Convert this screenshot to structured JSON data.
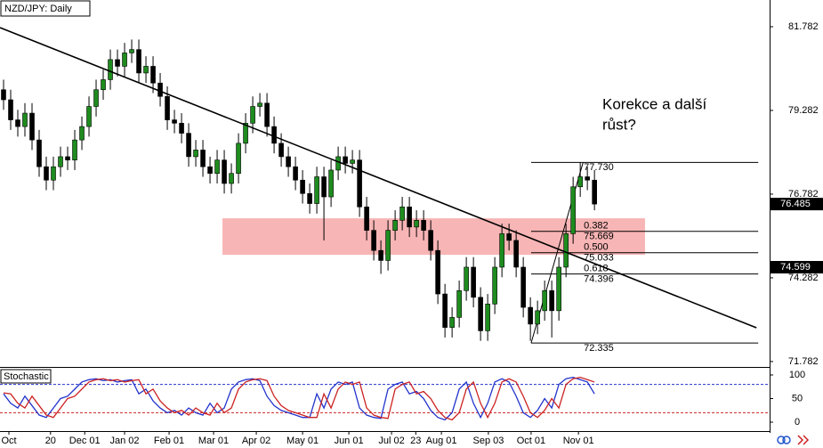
{
  "chart_data": [
    {
      "type": "candlestick",
      "title": "NZD/JPY: Daily",
      "annotation": [
        "Korekce a další",
        "růst?"
      ],
      "up_color": "#1e8c1e",
      "down_color": "#000000",
      "candles": [
        [
          79.9,
          80.2,
          79.3,
          79.6
        ],
        [
          79.6,
          79.9,
          78.7,
          79.0
        ],
        [
          79.0,
          79.3,
          78.5,
          78.8
        ],
        [
          78.8,
          79.5,
          78.5,
          79.2
        ],
        [
          79.2,
          79.5,
          78.1,
          78.4
        ],
        [
          78.4,
          78.7,
          77.3,
          77.6
        ],
        [
          77.6,
          77.9,
          76.9,
          77.2
        ],
        [
          77.2,
          77.9,
          76.9,
          77.6
        ],
        [
          77.6,
          78.2,
          77.3,
          77.9
        ],
        [
          77.9,
          78.2,
          77.5,
          77.8
        ],
        [
          77.8,
          78.7,
          77.5,
          78.4
        ],
        [
          78.4,
          79.1,
          78.1,
          78.8
        ],
        [
          78.8,
          79.7,
          78.5,
          79.4
        ],
        [
          79.4,
          80.2,
          79.1,
          79.9
        ],
        [
          79.9,
          80.5,
          79.6,
          80.2
        ],
        [
          80.2,
          81.1,
          79.9,
          80.8
        ],
        [
          80.8,
          81.1,
          80.3,
          80.6
        ],
        [
          80.6,
          81.3,
          80.3,
          81.0
        ],
        [
          81.0,
          81.4,
          80.7,
          81.1
        ],
        [
          81.1,
          81.4,
          80.1,
          80.4
        ],
        [
          80.4,
          80.9,
          80.1,
          80.6
        ],
        [
          80.6,
          80.9,
          79.8,
          80.1
        ],
        [
          80.1,
          80.4,
          79.4,
          79.7
        ],
        [
          79.7,
          80.0,
          78.7,
          79.0
        ],
        [
          79.0,
          79.3,
          78.6,
          78.9
        ],
        [
          78.9,
          79.2,
          78.3,
          78.6
        ],
        [
          78.6,
          78.9,
          77.6,
          77.9
        ],
        [
          77.9,
          78.4,
          77.6,
          78.1
        ],
        [
          78.1,
          78.4,
          77.3,
          77.6
        ],
        [
          77.6,
          77.9,
          77.1,
          77.4
        ],
        [
          77.4,
          78.1,
          77.1,
          77.8
        ],
        [
          77.8,
          78.1,
          76.8,
          77.1
        ],
        [
          77.1,
          77.7,
          76.8,
          77.4
        ],
        [
          77.4,
          78.6,
          77.1,
          78.3
        ],
        [
          78.3,
          79.2,
          78.0,
          78.9
        ],
        [
          78.9,
          79.7,
          78.6,
          79.4
        ],
        [
          79.4,
          79.8,
          79.1,
          79.5
        ],
        [
          79.5,
          79.8,
          78.5,
          78.8
        ],
        [
          78.8,
          79.1,
          78.0,
          78.3
        ],
        [
          78.3,
          78.6,
          77.6,
          77.9
        ],
        [
          77.9,
          78.2,
          77.3,
          77.6
        ],
        [
          77.6,
          77.9,
          76.9,
          77.2
        ],
        [
          77.2,
          77.5,
          76.5,
          76.8
        ],
        [
          76.8,
          77.1,
          76.2,
          76.5
        ],
        [
          76.5,
          77.6,
          76.2,
          77.3
        ],
        [
          77.3,
          77.6,
          75.4,
          76.7
        ],
        [
          76.7,
          77.8,
          76.4,
          77.5
        ],
        [
          77.5,
          78.2,
          77.2,
          77.9
        ],
        [
          77.9,
          78.2,
          77.4,
          77.7
        ],
        [
          77.7,
          78.1,
          77.4,
          77.8
        ],
        [
          77.8,
          78.1,
          76.1,
          76.4
        ],
        [
          76.4,
          76.7,
          75.4,
          75.7
        ],
        [
          75.7,
          76.0,
          74.8,
          75.1
        ],
        [
          75.1,
          75.4,
          74.4,
          74.8
        ],
        [
          74.8,
          76.0,
          74.5,
          75.7
        ],
        [
          75.7,
          76.3,
          75.4,
          76.0
        ],
        [
          76.0,
          76.7,
          75.7,
          76.4
        ],
        [
          76.4,
          76.7,
          75.5,
          75.8
        ],
        [
          75.8,
          76.3,
          75.5,
          76.0
        ],
        [
          76.0,
          76.3,
          75.4,
          75.7
        ],
        [
          75.7,
          76.0,
          74.8,
          75.1
        ],
        [
          75.1,
          75.4,
          73.5,
          73.8
        ],
        [
          73.8,
          74.1,
          72.5,
          72.8
        ],
        [
          72.8,
          73.4,
          72.5,
          73.1
        ],
        [
          73.1,
          74.2,
          72.8,
          73.9
        ],
        [
          73.9,
          74.9,
          73.6,
          74.6
        ],
        [
          74.6,
          74.9,
          73.4,
          73.7
        ],
        [
          73.7,
          74.0,
          72.4,
          72.7
        ],
        [
          72.7,
          73.8,
          72.4,
          73.5
        ],
        [
          73.5,
          74.9,
          73.2,
          74.6
        ],
        [
          74.6,
          75.9,
          74.3,
          75.6
        ],
        [
          75.6,
          75.9,
          75.1,
          75.4
        ],
        [
          75.4,
          75.7,
          74.3,
          74.6
        ],
        [
          74.6,
          74.9,
          73.1,
          73.4
        ],
        [
          73.4,
          73.7,
          72.4,
          72.9
        ],
        [
          72.9,
          73.6,
          72.6,
          73.3
        ],
        [
          73.3,
          74.2,
          73.0,
          73.9
        ],
        [
          73.9,
          74.2,
          72.5,
          73.3
        ],
        [
          73.3,
          74.9,
          73.0,
          74.6
        ],
        [
          74.6,
          75.9,
          74.3,
          75.6
        ],
        [
          75.6,
          77.3,
          75.3,
          77.0
        ],
        [
          77.0,
          77.73,
          76.7,
          77.3
        ],
        [
          77.3,
          77.6,
          76.9,
          77.2
        ],
        [
          77.2,
          77.5,
          76.3,
          76.485
        ]
      ],
      "xlim": [
        -0.5,
        107.6
      ],
      "xticks": [
        {
          "value": 0.75,
          "label": "Oct"
        },
        {
          "value": 6.6,
          "label": "20"
        },
        {
          "value": 11.4,
          "label": "Dec 01"
        },
        {
          "value": 17,
          "label": "Jan 02"
        },
        {
          "value": 23.25,
          "label": "Feb 01"
        },
        {
          "value": 29.5,
          "label": "Mar 01"
        },
        {
          "value": 35.5,
          "label": "Apr 02"
        },
        {
          "value": 42,
          "label": "May 01"
        },
        {
          "value": 48.5,
          "label": "Jun 01"
        },
        {
          "value": 54.5,
          "label": "Jul 02"
        },
        {
          "value": 57.9,
          "label": "23"
        },
        {
          "value": 61.5,
          "label": "Aug 01"
        },
        {
          "value": 68.1,
          "label": "Sep 03"
        },
        {
          "value": 74.1,
          "label": "Oct 01"
        },
        {
          "value": 80.75,
          "label": "Nov 01"
        }
      ],
      "ylim": [
        71.62,
        82.58
      ],
      "yticks": [
        81.782,
        79.282,
        76.782,
        74.282,
        71.782
      ],
      "trendline": {
        "x": [
          -0.5,
          105.75
        ],
        "y": [
          81.755,
          72.79
        ],
        "color": "#000000"
      },
      "zone": {
        "x": [
          30.75,
          90.1
        ],
        "y": [
          74.97,
          76.06
        ],
        "color": "#f7a8a8"
      },
      "fibonacci": {
        "x": [
          74.1,
          106
        ],
        "label_x": 81.5,
        "swing_x": [
          74.1,
          81.4
        ],
        "high": {
          "value": 77.73,
          "label": "77.730"
        },
        "low": {
          "value": 72.335,
          "label": "72.335"
        },
        "levels": [
          {
            "ratio": 0.382,
            "price": {
              "value": 75.669,
              "label": "75.669"
            }
          },
          {
            "ratio": {
              "value": 0.5,
              "label": "0.500"
            },
            "price": {
              "value": 75.033,
              "label": "75.033"
            }
          },
          {
            "ratio": 0.618,
            "price": {
              "value": 74.396,
              "label": "74.396"
            }
          }
        ]
      },
      "price_tags": [
        {
          "value": 76.485,
          "color": "#000000"
        },
        {
          "value": 74.599,
          "color": "#000000"
        }
      ]
    },
    {
      "type": "line",
      "title": "Stochastic",
      "ylim": [
        -18.9,
        113.2
      ],
      "yticks": [
        100,
        50,
        0
      ],
      "levels": [
        {
          "value": 80,
          "color": "#2233cc"
        },
        {
          "value": 20,
          "color": "#cc2222"
        }
      ],
      "series": [
        {
          "color": "#2233cc",
          "values": [
            60,
            40,
            30,
            55,
            35,
            15,
            10,
            30,
            50,
            55,
            70,
            85,
            90,
            92,
            88,
            90,
            85,
            88,
            90,
            60,
            70,
            45,
            30,
            20,
            25,
            15,
            30,
            20,
            15,
            40,
            20,
            30,
            70,
            85,
            90,
            92,
            88,
            55,
            35,
            25,
            20,
            15,
            10,
            10,
            60,
            30,
            70,
            85,
            80,
            85,
            30,
            15,
            10,
            8,
            70,
            80,
            85,
            60,
            65,
            50,
            25,
            10,
            5,
            20,
            70,
            85,
            40,
            10,
            40,
            85,
            92,
            85,
            55,
            20,
            10,
            25,
            50,
            30,
            80,
            92,
            95,
            90,
            85,
            60
          ]
        },
        {
          "color": "#cc2222",
          "values": [
            62,
            60,
            40,
            30,
            55,
            35,
            15,
            10,
            30,
            50,
            55,
            70,
            85,
            90,
            92,
            88,
            90,
            85,
            88,
            90,
            60,
            70,
            45,
            30,
            20,
            25,
            15,
            30,
            20,
            15,
            40,
            20,
            30,
            70,
            85,
            90,
            92,
            88,
            55,
            35,
            25,
            20,
            15,
            10,
            10,
            60,
            30,
            70,
            85,
            80,
            85,
            30,
            15,
            10,
            8,
            70,
            80,
            85,
            60,
            65,
            50,
            25,
            10,
            5,
            20,
            70,
            85,
            40,
            10,
            40,
            85,
            92,
            85,
            55,
            20,
            10,
            25,
            50,
            30,
            80,
            92,
            95,
            90,
            85
          ]
        }
      ]
    }
  ]
}
